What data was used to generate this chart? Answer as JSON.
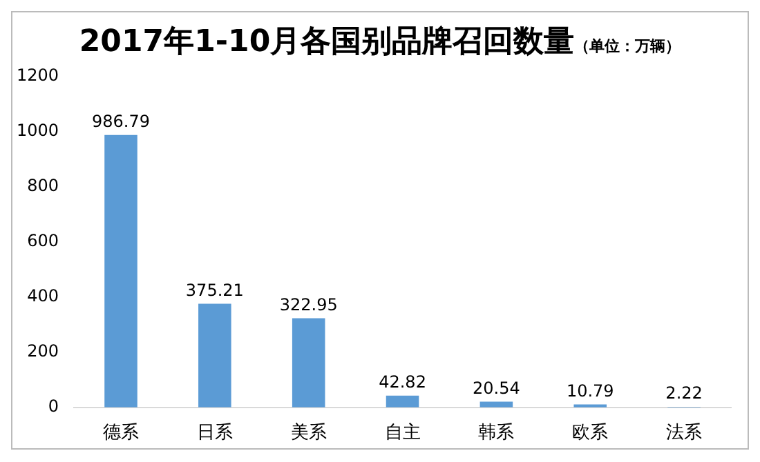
{
  "chart_data": {
    "type": "bar",
    "title": "2017年1-10月各国别品牌召回数量",
    "subtitle": "（单位：万辆）",
    "categories": [
      "德系",
      "日系",
      "美系",
      "自主",
      "韩系",
      "欧系",
      "法系"
    ],
    "values": [
      986.79,
      375.21,
      322.95,
      42.82,
      20.54,
      10.79,
      2.22
    ],
    "color": "#5b9bd5",
    "ylim": [
      0,
      1200
    ],
    "yticks": [
      0,
      200,
      400,
      600,
      800,
      1000,
      1200
    ],
    "data_labels": true
  }
}
